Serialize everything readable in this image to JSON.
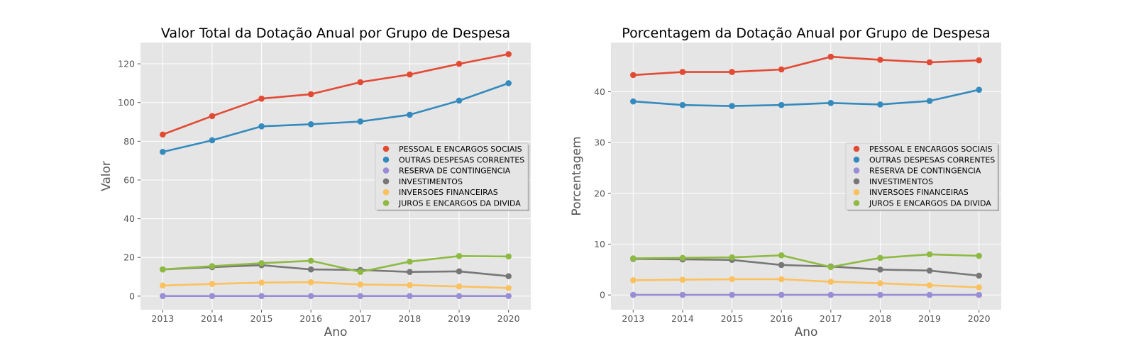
{
  "chart_data": [
    {
      "type": "line",
      "title": "Valor Total da Dotação Anual por Grupo de Despesa",
      "xlabel": "Ano",
      "ylabel": "Valor",
      "x": [
        2013,
        2014,
        2015,
        2016,
        2017,
        2018,
        2019,
        2020
      ],
      "ylim": [
        -7,
        131
      ],
      "yticks": [
        0,
        20,
        40,
        60,
        80,
        100,
        120
      ],
      "legend_position": "center-right",
      "grid": true,
      "series": [
        {
          "name": "PESSOAL E ENCARGOS SOCIAIS",
          "color": "#E24A33",
          "values": [
            83.5,
            93,
            102,
            104.3,
            110.5,
            114.5,
            120,
            125
          ]
        },
        {
          "name": "OUTRAS DESPESAS CORRENTES",
          "color": "#348ABD",
          "values": [
            74.5,
            80.5,
            87.7,
            88.8,
            90.2,
            93.7,
            101,
            110
          ]
        },
        {
          "name": "RESERVA DE CONTINGENCIA",
          "color": "#988ED5",
          "values": [
            0.05,
            0.05,
            0.05,
            0.05,
            0.05,
            0.05,
            0.05,
            0.05
          ]
        },
        {
          "name": "INVESTIMENTOS",
          "color": "#777777",
          "values": [
            13.8,
            15,
            16,
            13.8,
            13.5,
            12.5,
            12.8,
            10.3
          ]
        },
        {
          "name": "INVERSOES FINANCEIRAS",
          "color": "#FBC15E",
          "values": [
            5.5,
            6.3,
            7,
            7.2,
            6,
            5.7,
            5,
            4.2
          ]
        },
        {
          "name": "JUROS E ENCARGOS DA DIVIDA",
          "color": "#8EBA42",
          "values": [
            13.8,
            15.5,
            17,
            18.3,
            12.5,
            17.8,
            20.7,
            20.5
          ]
        }
      ]
    },
    {
      "type": "line",
      "title": "Porcentagem da Dotação Anual por Grupo de Despesa",
      "xlabel": "Ano",
      "ylabel": "Porcentagem",
      "x": [
        2013,
        2014,
        2015,
        2016,
        2017,
        2018,
        2019,
        2020
      ],
      "ylim": [
        -2.9,
        49.7
      ],
      "yticks": [
        0,
        10,
        20,
        30,
        40
      ],
      "legend_position": "center-right",
      "grid": true,
      "series": [
        {
          "name": "PESSOAL E ENCARGOS SOCIAIS",
          "color": "#E24A33",
          "values": [
            43.3,
            43.9,
            43.9,
            44.4,
            46.9,
            46.3,
            45.8,
            46.2
          ]
        },
        {
          "name": "OUTRAS DESPESAS CORRENTES",
          "color": "#348ABD",
          "values": [
            38.1,
            37.4,
            37.2,
            37.4,
            37.8,
            37.5,
            38.2,
            40.4
          ]
        },
        {
          "name": "RESERVA DE CONTINGENCIA",
          "color": "#988ED5",
          "values": [
            0.02,
            0.02,
            0.02,
            0.02,
            0.02,
            0.02,
            0.02,
            0.02
          ]
        },
        {
          "name": "INVESTIMENTOS",
          "color": "#777777",
          "values": [
            7.1,
            7,
            6.9,
            5.9,
            5.6,
            5,
            4.8,
            3.8
          ]
        },
        {
          "name": "INVERSOES FINANCEIRAS",
          "color": "#FBC15E",
          "values": [
            2.9,
            3,
            3.1,
            3.1,
            2.6,
            2.3,
            1.9,
            1.5
          ]
        },
        {
          "name": "JUROS E ENCARGOS DA DIVIDA",
          "color": "#8EBA42",
          "values": [
            7.2,
            7.3,
            7.4,
            7.8,
            5.5,
            7.3,
            8,
            7.7
          ]
        }
      ]
    }
  ]
}
